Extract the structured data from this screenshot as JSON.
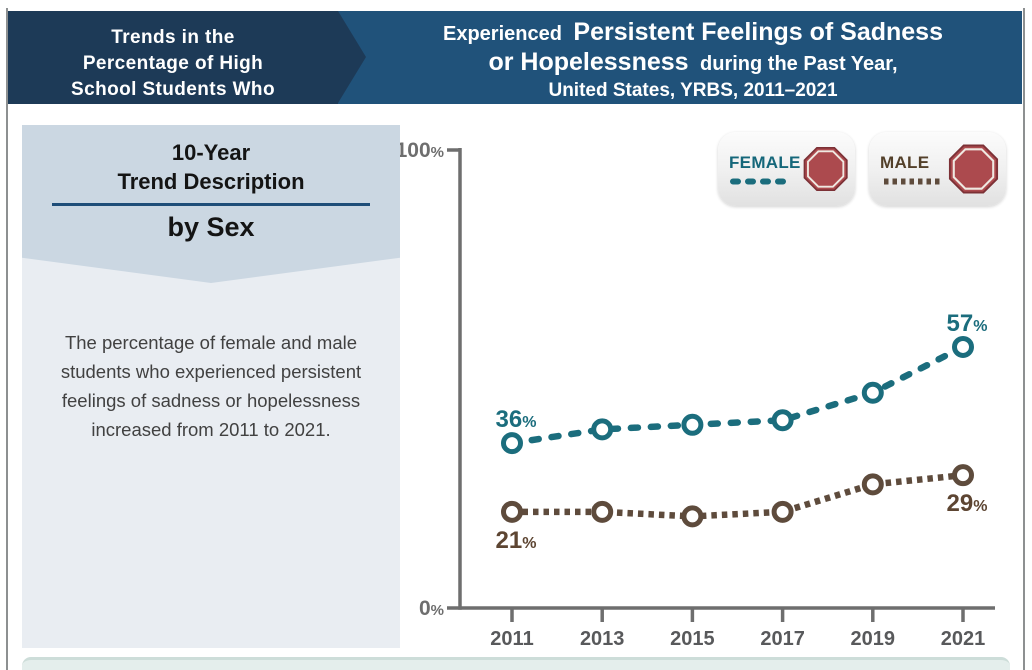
{
  "page": {
    "header": {
      "left_lines": [
        "Trends in the",
        "Percentage of High",
        "School Students Who"
      ],
      "title_prefix": "Experienced",
      "title_bold1": "Persistent Feelings of Sadness",
      "title_bold2": "or Hopelessness",
      "title_suffix": "during the Past Year,",
      "title_line3": "United States, YRBS, 2011–2021"
    },
    "sidebar": {
      "title_line1": "10-Year",
      "title_line2": "Trend Description",
      "subtitle": "by Sex",
      "description": "The percentage of female and male students who experienced persistent feelings of sadness or hopelessness increased from 2011 to 2021."
    },
    "legend": [
      {
        "label": "FEMALE",
        "line_color": "#1b6d7d",
        "dash": "dash",
        "icon": "stop-octagon",
        "icon_color": "#ac4a4e"
      },
      {
        "label": "MALE",
        "line_color": "#5e4b3c",
        "dash": "dot",
        "icon": "stop-octagon",
        "icon_color": "#ac4a4e"
      }
    ]
  },
  "colors": {
    "header_navy": "#1d3a57",
    "header_blue": "#20527a",
    "female_teal": "#1b6d7d",
    "male_brown": "#5e4b3c",
    "octagon_red": "#ac4a4e",
    "axis_gray": "#6e6e6e"
  },
  "chart_data": {
    "type": "line",
    "title": "Experienced Persistent Feelings of Sadness or Hopelessness during the Past Year, United States, YRBS, 2011–2021",
    "xlabel": "",
    "ylabel": "",
    "ylim": [
      0,
      100
    ],
    "grid": false,
    "legend_position": "top-right",
    "x_tick_labels": [
      "2011",
      "2013",
      "2015",
      "2017",
      "2019",
      "2021"
    ],
    "y_ticks": [
      {
        "v": 0,
        "label": "0",
        "suffix": "%"
      },
      {
        "v": 100,
        "label": "100",
        "suffix": "%"
      }
    ],
    "series": [
      {
        "name": "Female",
        "color": "#1b6d7d",
        "label_color": "#1b6d7d",
        "dash": "dash",
        "marker": "open-circle",
        "values": [
          36,
          39,
          40,
          41,
          47,
          57
        ],
        "first_label": {
          "text": "36",
          "suffix": "%",
          "pos": "above"
        },
        "last_label": {
          "text": "57",
          "suffix": "%",
          "pos": "above"
        }
      },
      {
        "name": "Male",
        "color": "#5e4b3c",
        "label_color": "#5d4532",
        "dash": "dot",
        "marker": "open-circle",
        "values": [
          21,
          21,
          20,
          21,
          27,
          29
        ],
        "first_label": {
          "text": "21",
          "suffix": "%",
          "pos": "below"
        },
        "last_label": {
          "text": "29",
          "suffix": "%",
          "pos": "below"
        }
      }
    ]
  }
}
